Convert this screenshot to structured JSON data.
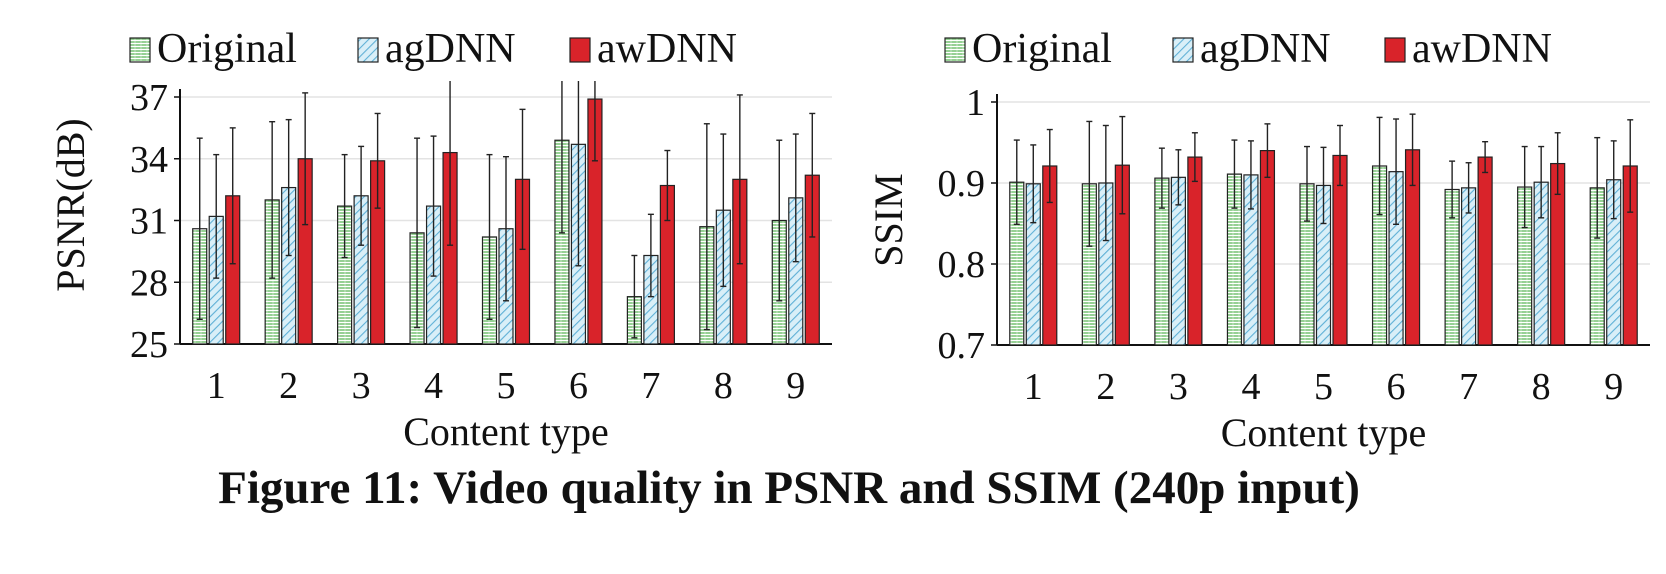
{
  "caption": "Figure 11: Video quality in PSNR and SSIM (240p input)",
  "colors": {
    "original": "#7cc47a",
    "agdnn": "#bfe3f2",
    "awdnn": "#d9232a"
  },
  "chart_data": [
    {
      "type": "bar",
      "xlabel": "Content type",
      "ylabel": "PSNR(dB)",
      "ylim": [
        25,
        37
      ],
      "yticks": [
        "25",
        "28",
        "31",
        "34",
        "37"
      ],
      "categories": [
        "1",
        "2",
        "3",
        "4",
        "5",
        "6",
        "7",
        "8",
        "9"
      ],
      "grid": true,
      "legend_position": "top",
      "series": [
        {
          "name": "Original",
          "pattern": "original",
          "values": [
            30.6,
            32.0,
            31.7,
            30.4,
            30.2,
            34.9,
            27.3,
            30.7,
            31.0
          ],
          "errors": [
            4.4,
            3.8,
            2.5,
            4.6,
            4.0,
            4.5,
            2.0,
            5.0,
            3.9
          ]
        },
        {
          "name": "agDNN",
          "pattern": "agdnn",
          "values": [
            31.2,
            32.6,
            32.2,
            31.7,
            30.6,
            34.7,
            29.3,
            31.5,
            32.1
          ],
          "errors": [
            3.0,
            3.3,
            2.4,
            3.4,
            3.5,
            5.9,
            2.0,
            3.7,
            3.1
          ]
        },
        {
          "name": "awDNN",
          "pattern": "awdnn",
          "values": [
            32.2,
            34.0,
            33.9,
            34.3,
            33.0,
            36.9,
            32.7,
            33.0,
            33.2
          ],
          "errors": [
            3.3,
            3.2,
            2.3,
            4.5,
            3.4,
            3.0,
            1.7,
            4.1,
            3.0
          ]
        }
      ]
    },
    {
      "type": "bar",
      "xlabel": "Content type",
      "ylabel": "SSIM",
      "ylim": [
        0.7,
        1.0
      ],
      "yticks": [
        "0.7",
        "0.8",
        "0.9",
        "1"
      ],
      "categories": [
        "1",
        "2",
        "3",
        "4",
        "5",
        "6",
        "7",
        "8",
        "9"
      ],
      "grid": true,
      "legend_position": "top",
      "series": [
        {
          "name": "Original",
          "pattern": "original",
          "values": [
            0.901,
            0.899,
            0.906,
            0.911,
            0.899,
            0.921,
            0.892,
            0.895,
            0.894
          ],
          "errors": [
            0.052,
            0.077,
            0.037,
            0.042,
            0.046,
            0.06,
            0.035,
            0.05,
            0.062
          ]
        },
        {
          "name": "agDNN",
          "pattern": "agdnn",
          "values": [
            0.899,
            0.9,
            0.907,
            0.91,
            0.897,
            0.914,
            0.894,
            0.901,
            0.904
          ],
          "errors": [
            0.048,
            0.071,
            0.034,
            0.042,
            0.047,
            0.065,
            0.031,
            0.044,
            0.048
          ]
        },
        {
          "name": "awDNN",
          "pattern": "awdnn",
          "values": [
            0.921,
            0.922,
            0.932,
            0.94,
            0.934,
            0.941,
            0.932,
            0.924,
            0.921
          ],
          "errors": [
            0.045,
            0.06,
            0.03,
            0.033,
            0.037,
            0.044,
            0.019,
            0.038,
            0.057
          ]
        }
      ]
    }
  ]
}
